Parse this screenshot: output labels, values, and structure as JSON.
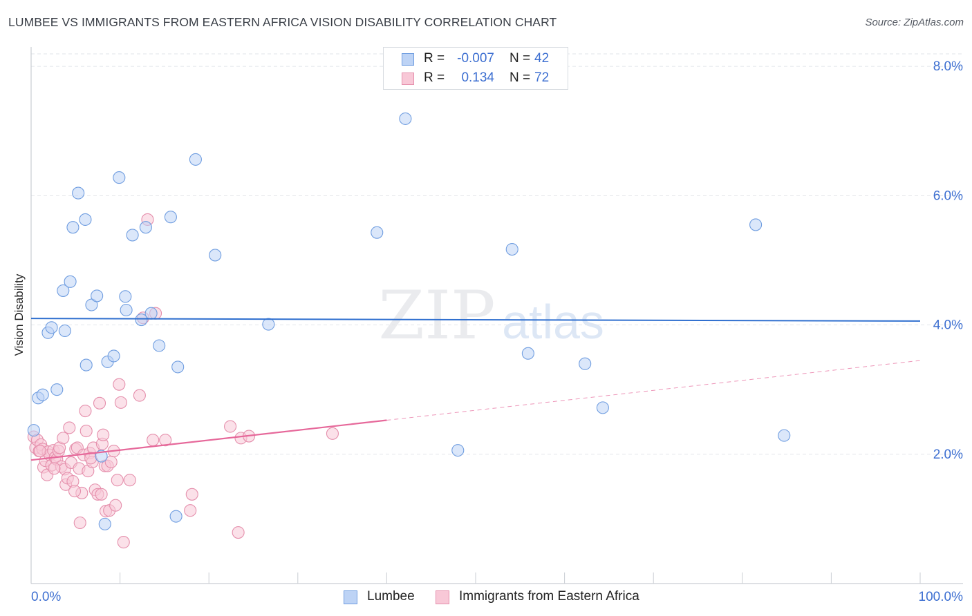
{
  "title": "LUMBEE VS IMMIGRANTS FROM EASTERN AFRICA VISION DISABILITY CORRELATION CHART",
  "source": "Source: ZipAtlas.com",
  "watermark": {
    "zip": "ZIP",
    "atlas": "atlas"
  },
  "stats_legend": [
    {
      "r_label": "R =",
      "r_value": "-0.007",
      "n_label": "N =",
      "n_value": "42",
      "fill": "#bdd3f5",
      "stroke": "#6f9de0"
    },
    {
      "r_label": "R =",
      "r_value": "0.134",
      "n_label": "N =",
      "n_value": "72",
      "fill": "#f8c8d7",
      "stroke": "#e58fac"
    }
  ],
  "chart_data": {
    "type": "scatter",
    "title": "LUMBEE VS IMMIGRANTS FROM EASTERN AFRICA VISION DISABILITY CORRELATION CHART",
    "xlabel": "",
    "ylabel": "Vision Disability",
    "xlim": [
      0,
      100
    ],
    "ylim": [
      0,
      8.3
    ],
    "x_tick_labels": [
      "0.0%",
      "100.0%"
    ],
    "y_ticks": [
      2.0,
      4.0,
      6.0,
      8.0
    ],
    "y_tick_labels": [
      "2.0%",
      "4.0%",
      "6.0%",
      "8.0%"
    ],
    "grid": true,
    "legend_position": "bottom-center",
    "series": [
      {
        "name": "Lumbee",
        "color": "#6f9de0",
        "fill": "#bdd3f5",
        "line_color": "#2f6fcf",
        "trend": {
          "x0": 0,
          "y0": 4.1,
          "x1": 100,
          "y1": 4.06,
          "dashed_from": null
        },
        "points": [
          [
            0.3,
            2.37
          ],
          [
            0.8,
            2.87
          ],
          [
            1.3,
            2.92
          ],
          [
            1.9,
            3.88
          ],
          [
            2.3,
            3.96
          ],
          [
            2.9,
            3.0
          ],
          [
            3.6,
            4.53
          ],
          [
            3.8,
            3.91
          ],
          [
            4.4,
            4.67
          ],
          [
            4.7,
            5.51
          ],
          [
            5.3,
            6.04
          ],
          [
            6.1,
            5.63
          ],
          [
            6.2,
            3.38
          ],
          [
            6.8,
            4.31
          ],
          [
            7.4,
            4.45
          ],
          [
            7.9,
            1.97
          ],
          [
            8.3,
            0.92
          ],
          [
            8.6,
            3.43
          ],
          [
            9.3,
            3.52
          ],
          [
            9.9,
            6.28
          ],
          [
            10.6,
            4.44
          ],
          [
            10.7,
            4.23
          ],
          [
            11.4,
            5.39
          ],
          [
            12.4,
            4.08
          ],
          [
            12.9,
            5.51
          ],
          [
            13.5,
            4.18
          ],
          [
            14.4,
            3.68
          ],
          [
            15.7,
            5.67
          ],
          [
            16.3,
            1.04
          ],
          [
            16.5,
            3.35
          ],
          [
            18.5,
            6.56
          ],
          [
            20.7,
            5.08
          ],
          [
            26.7,
            4.01
          ],
          [
            38.9,
            5.43
          ],
          [
            42.1,
            7.19
          ],
          [
            48.0,
            2.06
          ],
          [
            54.1,
            5.17
          ],
          [
            55.9,
            3.56
          ],
          [
            62.3,
            3.4
          ],
          [
            64.3,
            2.72
          ],
          [
            81.5,
            5.55
          ],
          [
            84.7,
            2.29
          ]
        ]
      },
      {
        "name": "Immigrants from Eastern Africa",
        "color": "#e58fac",
        "fill": "#f8c8d7",
        "line_color": "#e6689a",
        "trend": {
          "x0": 0,
          "y0": 1.91,
          "x1": 100,
          "y1": 3.45,
          "dashed_from": 40
        },
        "points": [
          [
            0.3,
            2.27
          ],
          [
            0.5,
            2.1
          ],
          [
            0.7,
            2.22
          ],
          [
            0.9,
            2.05
          ],
          [
            1.1,
            2.15
          ],
          [
            1.3,
            2.08
          ],
          [
            1.4,
            1.8
          ],
          [
            1.6,
            1.9
          ],
          [
            1.8,
            1.68
          ],
          [
            1.9,
            2.04
          ],
          [
            2.1,
            1.99
          ],
          [
            2.3,
            1.83
          ],
          [
            2.5,
            2.06
          ],
          [
            2.7,
            1.95
          ],
          [
            2.9,
            1.92
          ],
          [
            3.1,
            2.05
          ],
          [
            3.2,
            2.1
          ],
          [
            3.4,
            1.81
          ],
          [
            3.6,
            2.25
          ],
          [
            3.8,
            1.77
          ],
          [
            3.9,
            1.53
          ],
          [
            4.1,
            1.63
          ],
          [
            4.3,
            2.41
          ],
          [
            4.5,
            1.87
          ],
          [
            4.7,
            1.58
          ],
          [
            5.0,
            2.08
          ],
          [
            5.2,
            2.1
          ],
          [
            5.4,
            1.78
          ],
          [
            5.5,
            0.94
          ],
          [
            5.7,
            1.4
          ],
          [
            5.9,
            1.99
          ],
          [
            6.1,
            2.67
          ],
          [
            6.2,
            2.36
          ],
          [
            6.4,
            1.74
          ],
          [
            6.6,
            2.02
          ],
          [
            6.9,
            1.88
          ],
          [
            7.0,
            2.1
          ],
          [
            7.2,
            1.45
          ],
          [
            7.5,
            1.38
          ],
          [
            7.7,
            2.79
          ],
          [
            7.9,
            1.38
          ],
          [
            8.0,
            2.16
          ],
          [
            8.1,
            2.3
          ],
          [
            8.3,
            1.82
          ],
          [
            8.4,
            1.12
          ],
          [
            8.6,
            1.82
          ],
          [
            8.8,
            1.13
          ],
          [
            9.0,
            1.88
          ],
          [
            9.3,
            2.05
          ],
          [
            9.5,
            1.21
          ],
          [
            9.7,
            1.6
          ],
          [
            9.9,
            3.08
          ],
          [
            10.1,
            2.8
          ],
          [
            10.4,
            0.64
          ],
          [
            11.1,
            1.6
          ],
          [
            12.2,
            2.91
          ],
          [
            12.6,
            4.11
          ],
          [
            13.1,
            5.63
          ],
          [
            14.0,
            4.18
          ],
          [
            13.7,
            2.22
          ],
          [
            15.1,
            2.22
          ],
          [
            17.9,
            1.13
          ],
          [
            18.1,
            1.38
          ],
          [
            22.4,
            2.43
          ],
          [
            23.3,
            0.79
          ],
          [
            23.6,
            2.25
          ],
          [
            24.5,
            2.28
          ],
          [
            33.9,
            2.32
          ],
          [
            1.0,
            2.05
          ],
          [
            2.6,
            1.78
          ],
          [
            4.9,
            1.43
          ],
          [
            6.7,
            1.94
          ]
        ]
      }
    ]
  }
}
